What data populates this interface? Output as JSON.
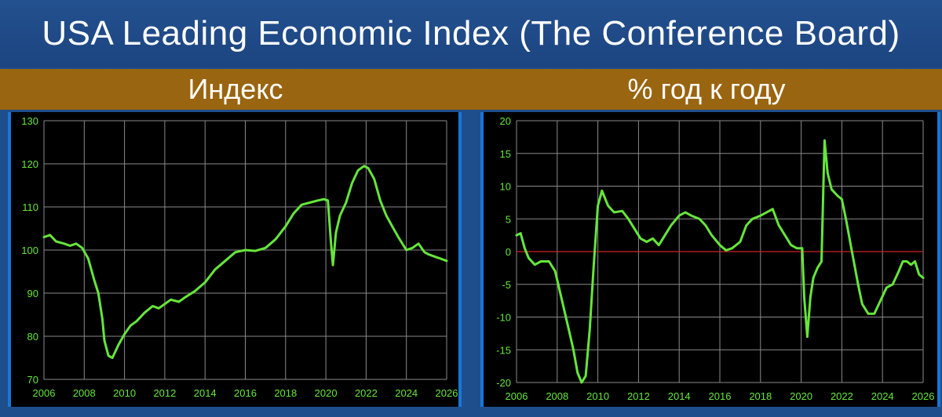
{
  "header": {
    "title": "USA Leading Economic Index (The Conference Board)"
  },
  "subheaders": {
    "left": "Индекс",
    "right": "% год к году"
  },
  "colors": {
    "background": "#1f4e8c",
    "subheader_bar": "#9a6510",
    "plot_background": "#000000",
    "line": "#66e63a",
    "zero_line": "#cc2222",
    "grid": "#8a8a8a",
    "tick_label": "#66e63a"
  },
  "chart_data": [
    {
      "type": "line",
      "title": "Индекс",
      "xlabel": "",
      "ylabel": "",
      "xlim": [
        2006,
        2026
      ],
      "ylim": [
        70,
        130
      ],
      "x_ticks": [
        "2006",
        "2008",
        "2010",
        "2012",
        "2014",
        "2016",
        "2018",
        "2020",
        "2022",
        "2024",
        "2026"
      ],
      "y_ticks": [
        "70",
        "80",
        "90",
        "100",
        "110",
        "120",
        "130"
      ],
      "grid": true,
      "series": [
        {
          "x": [
            2006.0,
            2006.3,
            2006.6,
            2007.0,
            2007.3,
            2007.6,
            2007.9,
            2008.2,
            2008.5,
            2008.7,
            2008.9,
            2009.0,
            2009.2,
            2009.4,
            2009.7,
            2010.0,
            2010.3,
            2010.6,
            2011.0,
            2011.4,
            2011.7,
            2012.0,
            2012.3,
            2012.7,
            2013.0,
            2013.5,
            2014.0,
            2014.5,
            2015.0,
            2015.5,
            2016.0,
            2016.5,
            2017.0,
            2017.5,
            2018.0,
            2018.4,
            2018.8,
            2019.2,
            2019.6,
            2019.9,
            2020.1,
            2020.25,
            2020.35,
            2020.5,
            2020.7,
            2021.0,
            2021.3,
            2021.6,
            2021.9,
            2022.1,
            2022.4,
            2022.7,
            2023.0,
            2023.3,
            2023.6,
            2024.0,
            2024.3,
            2024.6,
            2024.9,
            2025.1,
            2025.4,
            2025.7,
            2026.0
          ],
          "y": [
            103.0,
            103.5,
            102.0,
            101.5,
            101.0,
            101.5,
            100.5,
            98.0,
            93.0,
            90.0,
            84.0,
            79.0,
            75.5,
            75.0,
            78.0,
            80.5,
            82.5,
            83.5,
            85.5,
            87.0,
            86.5,
            87.5,
            88.5,
            88.0,
            89.0,
            90.5,
            92.5,
            95.5,
            97.5,
            99.5,
            100.0,
            99.8,
            100.5,
            102.5,
            105.5,
            108.5,
            110.5,
            111.0,
            111.5,
            111.8,
            111.5,
            102.0,
            96.5,
            104.0,
            108.0,
            111.0,
            115.5,
            118.5,
            119.5,
            119.0,
            116.5,
            111.5,
            108.0,
            105.5,
            103.0,
            100.0,
            100.5,
            101.5,
            99.5,
            99.0,
            98.5,
            98.0,
            97.5
          ]
        }
      ]
    },
    {
      "type": "line",
      "title": "% год к году",
      "xlabel": "",
      "ylabel": "",
      "xlim": [
        2006,
        2026
      ],
      "ylim": [
        -20,
        20
      ],
      "x_ticks": [
        "2006",
        "2008",
        "2010",
        "2012",
        "2014",
        "2016",
        "2018",
        "2020",
        "2022",
        "2024",
        "2026"
      ],
      "y_ticks": [
        "-20",
        "-15",
        "-10",
        "-5",
        "0",
        "5",
        "10",
        "15",
        "20"
      ],
      "zero_line": true,
      "grid": true,
      "series": [
        {
          "x": [
            2006.0,
            2006.2,
            2006.4,
            2006.6,
            2006.9,
            2007.2,
            2007.6,
            2007.9,
            2008.2,
            2008.5,
            2008.8,
            2009.0,
            2009.2,
            2009.4,
            2009.6,
            2009.8,
            2010.0,
            2010.2,
            2010.5,
            2010.8,
            2011.2,
            2011.5,
            2011.8,
            2012.1,
            2012.4,
            2012.7,
            2013.0,
            2013.3,
            2013.6,
            2014.0,
            2014.3,
            2014.6,
            2015.0,
            2015.3,
            2015.6,
            2016.0,
            2016.3,
            2016.6,
            2017.0,
            2017.3,
            2017.6,
            2018.0,
            2018.3,
            2018.6,
            2018.9,
            2019.2,
            2019.5,
            2019.8,
            2020.05,
            2020.15,
            2020.3,
            2020.45,
            2020.6,
            2020.8,
            2021.0,
            2021.15,
            2021.3,
            2021.5,
            2021.8,
            2022.0,
            2022.2,
            2022.5,
            2022.8,
            2023.0,
            2023.3,
            2023.6,
            2023.9,
            2024.2,
            2024.5,
            2024.8,
            2025.0,
            2025.2,
            2025.4,
            2025.6,
            2025.8,
            2026.0
          ],
          "y": [
            2.5,
            2.8,
            0.5,
            -1.0,
            -2.0,
            -1.5,
            -1.5,
            -3.0,
            -7.0,
            -11.0,
            -15.0,
            -18.5,
            -20.0,
            -19.0,
            -12.0,
            -2.0,
            7.0,
            9.3,
            7.0,
            6.0,
            6.2,
            5.0,
            3.5,
            2.0,
            1.5,
            2.0,
            1.0,
            2.5,
            4.0,
            5.5,
            6.0,
            5.5,
            5.0,
            4.0,
            2.5,
            1.0,
            0.2,
            0.5,
            1.5,
            4.0,
            5.0,
            5.5,
            6.0,
            6.5,
            4.0,
            2.5,
            1.0,
            0.5,
            0.5,
            -7.0,
            -13.0,
            -7.0,
            -4.0,
            -2.5,
            -1.5,
            17.0,
            12.0,
            9.5,
            8.5,
            8.0,
            5.0,
            0.0,
            -5.0,
            -8.0,
            -9.5,
            -9.5,
            -7.5,
            -5.5,
            -5.0,
            -3.0,
            -1.5,
            -1.5,
            -2.0,
            -1.5,
            -3.5,
            -4.0
          ]
        }
      ]
    }
  ]
}
